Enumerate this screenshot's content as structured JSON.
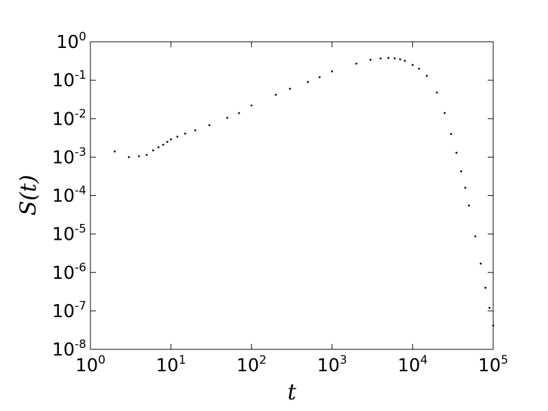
{
  "chart_data": {
    "type": "scatter",
    "x_label": "t",
    "y_label": "S(t)",
    "log_x": true,
    "log_y": true,
    "color": "#000000",
    "xlim": [
      1,
      100000
    ],
    "ylim": [
      1e-08,
      1
    ],
    "xticks": [
      {
        "value": 1,
        "label": "10^0"
      },
      {
        "value": 10,
        "label": "10^1"
      },
      {
        "value": 100,
        "label": "10^2"
      },
      {
        "value": 1000,
        "label": "10^3"
      },
      {
        "value": 10000,
        "label": "10^4"
      },
      {
        "value": 100000,
        "label": "10^5"
      }
    ],
    "yticks": [
      {
        "value": 1e-08,
        "label": "10^-8"
      },
      {
        "value": 1e-07,
        "label": "10^-7"
      },
      {
        "value": 1e-06,
        "label": "10^-6"
      },
      {
        "value": 1e-05,
        "label": "10^-5"
      },
      {
        "value": 0.0001,
        "label": "10^-4"
      },
      {
        "value": 0.001,
        "label": "10^-3"
      },
      {
        "value": 0.01,
        "label": "10^-2"
      },
      {
        "value": 0.1,
        "label": "10^-1"
      },
      {
        "value": 1,
        "label": "10^0"
      }
    ],
    "x": [
      2,
      3,
      4,
      5,
      6,
      7,
      8,
      9,
      10,
      12,
      15,
      20,
      30,
      50,
      70,
      100,
      200,
      300,
      500,
      700,
      1000,
      2000,
      3000,
      4000,
      5000,
      6000,
      7000,
      8000,
      10000,
      12000,
      15000,
      20000,
      25000,
      30000,
      35000,
      40000,
      45000,
      50000,
      60000,
      70000,
      80000,
      90000,
      100000
    ],
    "y": [
      0.0014,
      0.001,
      0.00105,
      0.00115,
      0.0015,
      0.0018,
      0.0021,
      0.0025,
      0.0029,
      0.0034,
      0.0041,
      0.005,
      0.0068,
      0.0105,
      0.014,
      0.022,
      0.042,
      0.06,
      0.09,
      0.12,
      0.17,
      0.27,
      0.34,
      0.37,
      0.38,
      0.37,
      0.35,
      0.32,
      0.25,
      0.2,
      0.13,
      0.048,
      0.014,
      0.004,
      0.0013,
      0.00043,
      0.00016,
      5.5e-05,
      8.7e-06,
      1.7e-06,
      4e-07,
      1.2e-07,
      4.2e-08
    ]
  }
}
